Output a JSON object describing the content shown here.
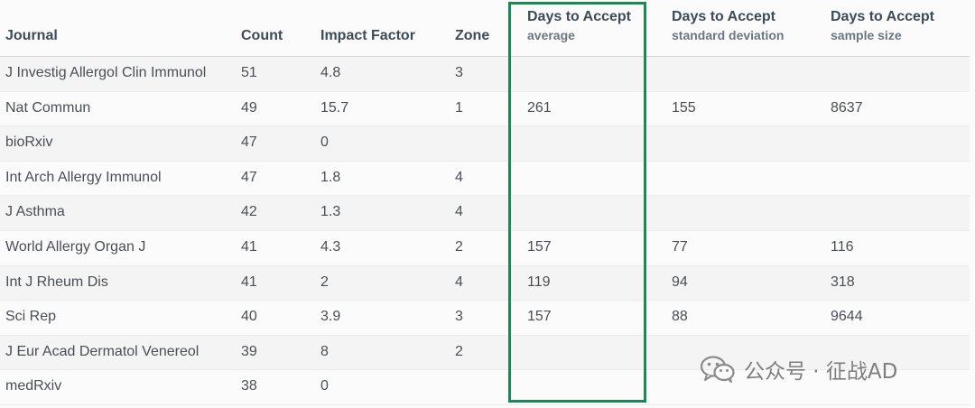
{
  "headers": {
    "journal": "Journal",
    "count": "Count",
    "impact_factor": "Impact Factor",
    "zone": "Zone",
    "avg_title": "Days to Accept",
    "avg_sub": "average",
    "sd_title": "Days to Accept",
    "sd_sub": "standard deviation",
    "n_title": "Days to Accept",
    "n_sub": "sample size"
  },
  "rows": [
    {
      "journal": "J Investig Allergol Clin Immunol",
      "count": "51",
      "impact_factor": "4.8",
      "zone": "3",
      "avg": "",
      "sd": "",
      "n": ""
    },
    {
      "journal": "Nat Commun",
      "count": "49",
      "impact_factor": "15.7",
      "zone": "1",
      "avg": "261",
      "sd": "155",
      "n": "8637"
    },
    {
      "journal": "bioRxiv",
      "count": "47",
      "impact_factor": "0",
      "zone": "",
      "avg": "",
      "sd": "",
      "n": ""
    },
    {
      "journal": "Int Arch Allergy Immunol",
      "count": "47",
      "impact_factor": "1.8",
      "zone": "4",
      "avg": "",
      "sd": "",
      "n": ""
    },
    {
      "journal": "J Asthma",
      "count": "42",
      "impact_factor": "1.3",
      "zone": "4",
      "avg": "",
      "sd": "",
      "n": ""
    },
    {
      "journal": "World Allergy Organ J",
      "count": "41",
      "impact_factor": "4.3",
      "zone": "2",
      "avg": "157",
      "sd": "77",
      "n": "116"
    },
    {
      "journal": "Int J Rheum Dis",
      "count": "41",
      "impact_factor": "2",
      "zone": "4",
      "avg": "119",
      "sd": "94",
      "n": "318"
    },
    {
      "journal": "Sci Rep",
      "count": "40",
      "impact_factor": "3.9",
      "zone": "3",
      "avg": "157",
      "sd": "88",
      "n": "9644"
    },
    {
      "journal": "J Eur Acad Dermatol Venereol",
      "count": "39",
      "impact_factor": "8",
      "zone": "2",
      "avg": "",
      "sd": "",
      "n": ""
    },
    {
      "journal": "medRxiv",
      "count": "38",
      "impact_factor": "0",
      "zone": "",
      "avg": "",
      "sd": "",
      "n": ""
    }
  ],
  "watermark": {
    "text": "公众号 · 征战AD",
    "icon": "wechat-logo-icon"
  },
  "colors": {
    "highlight_border": "#1a8a52",
    "header_text": "#3d4b58",
    "body_text": "#4a4f55"
  }
}
